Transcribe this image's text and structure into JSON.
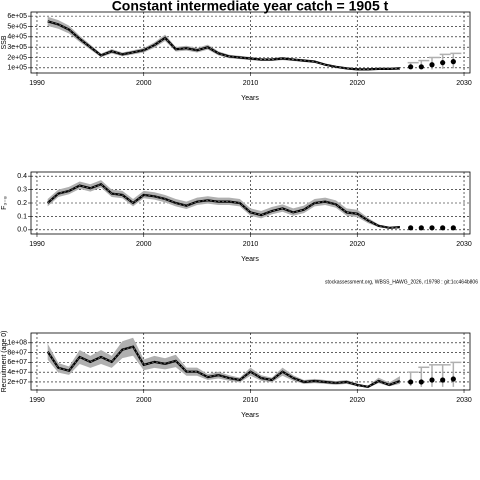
{
  "chart_data": [
    {
      "type": "line",
      "title": "Constant intermediate year catch = 1905 t",
      "xlabel": "Years",
      "ylabel": "SSB",
      "xlim": [
        1989.44,
        2030.56
      ],
      "xticks": [
        1990,
        2000,
        2010,
        2020,
        2030
      ],
      "ylim": [
        50000,
        640000
      ],
      "yticks": [
        {
          "value": 100000,
          "label": "1e+05"
        },
        {
          "value": 200000,
          "label": "2e+05"
        },
        {
          "value": 300000,
          "label": "3e+05"
        },
        {
          "value": 400000,
          "label": "4e+05"
        },
        {
          "value": 500000,
          "label": "5e+05"
        },
        {
          "value": 600000,
          "label": "6e+05"
        }
      ],
      "grid": true,
      "color": "#000000",
      "band_color": "#b0b0b0",
      "x": [
        1991,
        1992,
        1993,
        1994,
        1995,
        1996,
        1997,
        1998,
        1999,
        2000,
        2001,
        2002,
        2003,
        2004,
        2005,
        2006,
        2007,
        2008,
        2009,
        2010,
        2011,
        2012,
        2013,
        2014,
        2015,
        2016,
        2017,
        2018,
        2019,
        2020,
        2021,
        2022,
        2023,
        2024
      ],
      "values": [
        550000,
        520000,
        470000,
        380000,
        300000,
        220000,
        260000,
        230000,
        250000,
        270000,
        320000,
        390000,
        280000,
        290000,
        270000,
        300000,
        240000,
        210000,
        200000,
        190000,
        180000,
        180000,
        190000,
        180000,
        170000,
        160000,
        130000,
        110000,
        95000,
        85000,
        85000,
        90000,
        90000,
        95000
      ],
      "lower": [
        506000,
        478000,
        432000,
        350000,
        276000,
        202000,
        239000,
        212000,
        230000,
        248000,
        294000,
        359000,
        258000,
        267000,
        248000,
        276000,
        221000,
        193000,
        184000,
        175000,
        166000,
        166000,
        175000,
        166000,
        156000,
        147000,
        120000,
        101000,
        87000,
        78000,
        78000,
        82000,
        80000,
        82000
      ],
      "upper": [
        594000,
        562000,
        508000,
        410000,
        324000,
        238000,
        281000,
        248000,
        270000,
        292000,
        346000,
        421000,
        302000,
        313000,
        292000,
        324000,
        259000,
        227000,
        216000,
        205000,
        194000,
        194000,
        205000,
        194000,
        184000,
        173000,
        140000,
        119000,
        103000,
        92000,
        92000,
        98000,
        100000,
        108000
      ],
      "projection": {
        "x": [
          2025,
          2026,
          2027,
          2028,
          2029
        ],
        "values": [
          110000,
          110000,
          130000,
          150000,
          160000
        ],
        "lower": [
          95000,
          85000,
          85000,
          90000,
          95000
        ],
        "upper": [
          150000,
          170000,
          200000,
          230000,
          240000
        ]
      }
    },
    {
      "type": "line",
      "xlabel": "Years",
      "ylabel": "F₃₋₈",
      "caption": "stockassessment.org, WBSS_HAWG_2026, r19798 : git:1cc464b806",
      "xlim": [
        1989.44,
        2030.56
      ],
      "xticks": [
        1990,
        2000,
        2010,
        2020,
        2030
      ],
      "ylim": [
        -0.031,
        0.431
      ],
      "yticks": [
        {
          "value": 0,
          "label": "0.0"
        },
        0.1,
        0.2,
        0.3,
        0.4
      ],
      "grid": true,
      "color": "#000000",
      "band_color": "#b0b0b0",
      "x": [
        1991,
        1992,
        1993,
        1994,
        1995,
        1996,
        1997,
        1998,
        1999,
        2000,
        2001,
        2002,
        2003,
        2004,
        2005,
        2006,
        2007,
        2008,
        2009,
        2010,
        2011,
        2012,
        2013,
        2014,
        2015,
        2016,
        2017,
        2018,
        2019,
        2020,
        2021,
        2022,
        2023,
        2024
      ],
      "values": [
        0.2,
        0.27,
        0.29,
        0.33,
        0.31,
        0.34,
        0.27,
        0.26,
        0.2,
        0.26,
        0.25,
        0.23,
        0.2,
        0.18,
        0.21,
        0.22,
        0.21,
        0.21,
        0.2,
        0.13,
        0.11,
        0.14,
        0.16,
        0.13,
        0.15,
        0.2,
        0.21,
        0.19,
        0.13,
        0.12,
        0.07,
        0.03,
        0.015,
        0.02
      ],
      "lower": [
        0.175,
        0.245,
        0.265,
        0.305,
        0.285,
        0.315,
        0.245,
        0.235,
        0.175,
        0.235,
        0.225,
        0.205,
        0.175,
        0.155,
        0.185,
        0.195,
        0.185,
        0.185,
        0.175,
        0.105,
        0.085,
        0.115,
        0.135,
        0.105,
        0.125,
        0.175,
        0.185,
        0.165,
        0.105,
        0.095,
        0.05,
        0.02,
        0.01,
        0.012
      ],
      "upper": [
        0.23,
        0.3,
        0.32,
        0.36,
        0.34,
        0.37,
        0.3,
        0.29,
        0.23,
        0.29,
        0.28,
        0.26,
        0.23,
        0.21,
        0.24,
        0.25,
        0.24,
        0.24,
        0.23,
        0.16,
        0.14,
        0.17,
        0.19,
        0.16,
        0.18,
        0.23,
        0.24,
        0.22,
        0.16,
        0.15,
        0.09,
        0.04,
        0.02,
        0.03
      ],
      "projection": {
        "x": [
          2025,
          2026,
          2027,
          2028,
          2029
        ],
        "values": [
          0.015,
          0.015,
          0.015,
          0.015,
          0.015
        ]
      }
    },
    {
      "type": "line",
      "xlabel": "Years",
      "ylabel": "Recruitment (age 0)",
      "xlim": [
        1989.44,
        2030.56
      ],
      "xticks": [
        1990,
        2000,
        2010,
        2020,
        2030
      ],
      "ylim": [
        3600000,
        120000000
      ],
      "yticks": [
        {
          "value": 20000000,
          "label": "2e+07"
        },
        {
          "value": 40000000,
          "label": "4e+07"
        },
        {
          "value": 60000000,
          "label": "6e+07"
        },
        {
          "value": 80000000,
          "label": "8e+07"
        },
        {
          "value": 100000000,
          "label": "1e+08"
        }
      ],
      "grid": true,
      "color": "#000000",
      "band_color": "#b0b0b0",
      "x": [
        1991,
        1992,
        1993,
        1994,
        1995,
        1996,
        1997,
        1998,
        1999,
        2000,
        2001,
        2002,
        2003,
        2004,
        2005,
        2006,
        2007,
        2008,
        2009,
        2010,
        2011,
        2012,
        2013,
        2014,
        2015,
        2016,
        2017,
        2018,
        2019,
        2020,
        2021,
        2022,
        2023,
        2024
      ],
      "values": [
        82000000,
        49000000,
        43000000,
        71000000,
        61000000,
        71000000,
        61000000,
        86000000,
        92000000,
        55000000,
        61000000,
        57000000,
        63000000,
        41000000,
        41000000,
        30000000,
        34000000,
        28000000,
        24000000,
        41000000,
        28000000,
        24000000,
        41000000,
        28000000,
        20000000,
        22000000,
        20000000,
        18000000,
        20000000,
        14000000,
        10000000,
        22000000,
        14000000,
        22000000
      ],
      "lower": [
        65600000,
        39200000,
        34400000,
        56800000,
        48800000,
        56800000,
        48800000,
        68800000,
        73600000,
        44000000,
        48800000,
        45600000,
        50400000,
        32800000,
        32800000,
        24000000,
        27200000,
        22400000,
        19200000,
        32800000,
        22400000,
        19200000,
        32800000,
        22400000,
        16000000,
        17600000,
        16000000,
        14400000,
        16000000,
        11200000,
        8000000,
        17600000,
        11200000,
        16000000
      ],
      "upper": [
        98400000,
        58800000,
        51600000,
        85200000,
        73200000,
        85200000,
        73200000,
        103200000,
        110400000,
        66000000,
        73200000,
        68400000,
        75600000,
        49200000,
        49200000,
        36000000,
        40800000,
        33600000,
        28800000,
        49200000,
        33600000,
        28800000,
        49200000,
        33600000,
        24000000,
        26400000,
        24000000,
        21600000,
        24000000,
        16800000,
        12000000,
        28800000,
        18800000,
        32000000
      ],
      "projection": {
        "x": [
          2025,
          2026,
          2027,
          2028,
          2029
        ],
        "values": [
          20000000,
          20000000,
          24000000,
          24000000,
          26000000
        ],
        "lower": [
          12000000,
          10000000,
          10000000,
          10000000,
          10000000
        ],
        "upper": [
          40000000,
          50000000,
          55000000,
          55000000,
          60000000
        ]
      }
    }
  ]
}
